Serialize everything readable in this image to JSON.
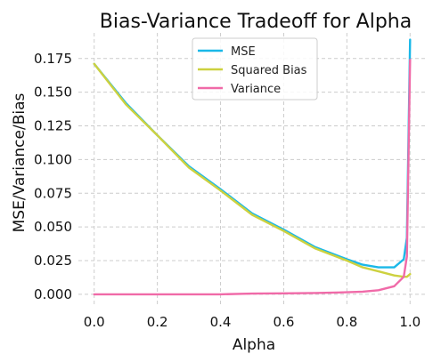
{
  "chart_data": {
    "type": "line",
    "title": "Bias-Variance Tradeoff for Alpha",
    "xlabel": "Alpha",
    "ylabel": "MSE/Variance/Bias",
    "xlim": [
      -0.05,
      1.05
    ],
    "ylim": [
      -0.008,
      0.194
    ],
    "xticks": [
      0.0,
      0.2,
      0.4,
      0.6,
      0.8,
      1.0
    ],
    "xtick_labels": [
      "0.0",
      "0.2",
      "0.4",
      "0.6",
      "0.8",
      "1.0"
    ],
    "yticks": [
      0.0,
      0.025,
      0.05,
      0.075,
      0.1,
      0.125,
      0.15,
      0.175
    ],
    "ytick_labels": [
      "0.000",
      "0.025",
      "0.050",
      "0.075",
      "0.100",
      "0.125",
      "0.150",
      "0.175"
    ],
    "grid": true,
    "legend_position": "top-center",
    "series": [
      {
        "name": "MSE",
        "color": "#1ab8e8",
        "x": [
          0.0,
          0.1,
          0.2,
          0.3,
          0.4,
          0.5,
          0.6,
          0.7,
          0.8,
          0.85,
          0.9,
          0.95,
          0.98,
          0.99,
          1.0
        ],
        "y": [
          0.171,
          0.142,
          0.118,
          0.095,
          0.078,
          0.06,
          0.048,
          0.035,
          0.026,
          0.022,
          0.02,
          0.02,
          0.026,
          0.042,
          0.189
        ]
      },
      {
        "name": "Squared Bias",
        "color": "#cdd13f",
        "x": [
          0.0,
          0.1,
          0.2,
          0.3,
          0.4,
          0.5,
          0.6,
          0.7,
          0.8,
          0.85,
          0.9,
          0.95,
          0.98,
          0.99,
          1.0
        ],
        "y": [
          0.171,
          0.141,
          0.118,
          0.094,
          0.077,
          0.059,
          0.047,
          0.034,
          0.025,
          0.02,
          0.017,
          0.014,
          0.013,
          0.013,
          0.015
        ]
      },
      {
        "name": "Variance",
        "color": "#f06aa8",
        "x": [
          0.0,
          0.1,
          0.2,
          0.3,
          0.4,
          0.5,
          0.6,
          0.7,
          0.8,
          0.85,
          0.9,
          0.95,
          0.98,
          0.99,
          1.0
        ],
        "y": [
          0.0,
          0.0,
          0.0,
          0.0,
          0.0,
          0.0005,
          0.0007,
          0.001,
          0.0015,
          0.002,
          0.003,
          0.006,
          0.013,
          0.028,
          0.174
        ]
      }
    ]
  }
}
